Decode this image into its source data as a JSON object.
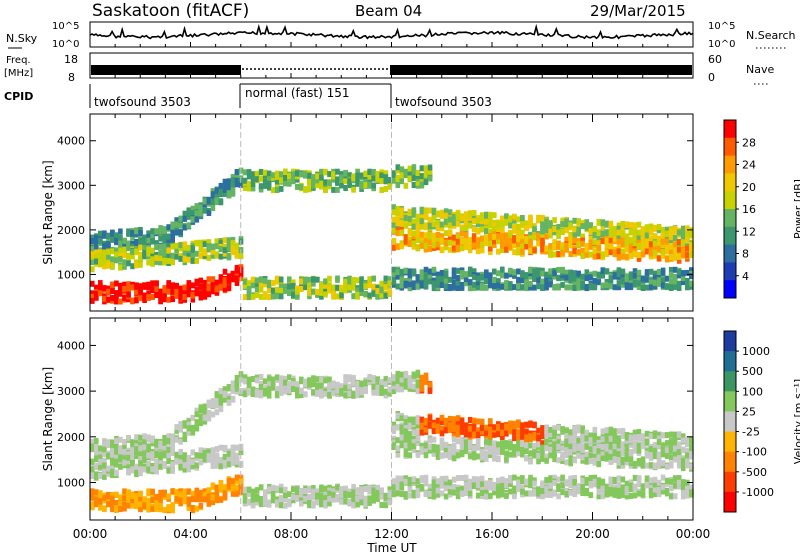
{
  "header": {
    "station": "Saskatoon (fitACF)",
    "beam": "Beam 04",
    "date": "29/Mar/2015"
  },
  "top_panels": {
    "nsky_label": "N.Sky",
    "nsky_ticks": [
      "10^5",
      "10^0"
    ],
    "nsearch_label": "N.Search",
    "nsearch_ticks": [
      "10^5",
      "10^0"
    ],
    "freq_label_line1": "Freq.",
    "freq_label_line2": "[MHz]",
    "freq_ticks": [
      "18",
      "8"
    ],
    "nave_label": "Nave",
    "nave_ticks": [
      "60",
      "0"
    ],
    "cpid_label": "CPID",
    "cpid_segments": [
      {
        "label": "twofsound 3503",
        "start_hr": 0,
        "end_hr": 6
      },
      {
        "label": "normal (fast) 151",
        "start_hr": 6,
        "end_hr": 12
      },
      {
        "label": "twofsound 3503",
        "start_hr": 12,
        "end_hr": 24
      }
    ]
  },
  "x_axis": {
    "label": "Time UT",
    "ticks": [
      "00:00",
      "04:00",
      "08:00",
      "12:00",
      "16:00",
      "20:00",
      "00:00"
    ]
  },
  "chart_data": [
    {
      "type": "heatmap",
      "name": "power",
      "ylabel": "Slant Range [km]",
      "yticks": [
        "4000",
        "3000",
        "2000",
        "1000"
      ],
      "ylim": [
        180,
        4600
      ],
      "xlim_hours": [
        0,
        24
      ],
      "colorbar_label": "Power [dB]",
      "colorbar_ticks": [
        "28",
        "24",
        "20",
        "16",
        "12",
        "8",
        "4"
      ],
      "colorbar_colors": [
        "#ff0000",
        "#ff5a00",
        "#ff9a00",
        "#f0c800",
        "#c8d200",
        "#64b464",
        "#3c966e",
        "#2d6ea0",
        "#1e3cb4",
        "#0000ff"
      ]
    },
    {
      "type": "heatmap",
      "name": "velocity",
      "ylabel": "Slant Range [km]",
      "yticks": [
        "4000",
        "3000",
        "2000",
        "1000"
      ],
      "ylim": [
        180,
        4600
      ],
      "xlim_hours": [
        0,
        24
      ],
      "colorbar_label": "Velocity [m s⁻¹]",
      "colorbar_ticks": [
        "1000",
        "500",
        "100",
        "25",
        "-25",
        "-100",
        "-500",
        "-1000"
      ],
      "colorbar_colors": [
        "#1e3ca0",
        "#1e6e96",
        "#3c9664",
        "#82c85a",
        "#c8c8c8",
        "#ffb400",
        "#ff8200",
        "#ff3c00",
        "#ff0000"
      ]
    }
  ]
}
